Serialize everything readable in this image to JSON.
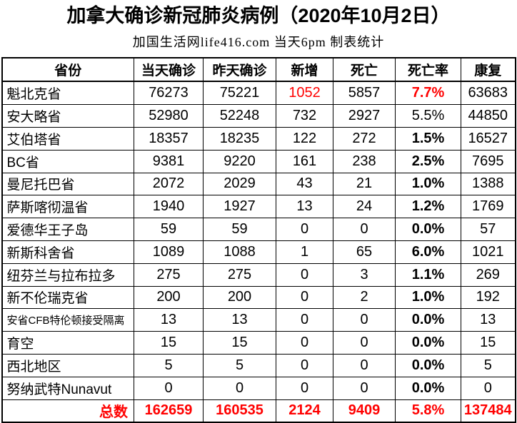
{
  "title": "加拿大确诊新冠肺炎病例（2020年10月2日）",
  "subtitle": "加国生活网life416.com 当天6pm 制表统计",
  "colors": {
    "accent_red": "#ff0000",
    "text": "#000000",
    "border": "#000000",
    "background": "#ffffff"
  },
  "table": {
    "headers": [
      "省份",
      "当天确诊",
      "昨天确诊",
      "新增",
      "死亡",
      "死亡率",
      "康复"
    ],
    "rows": [
      {
        "province": "魁北克省",
        "today": "76273",
        "yesterday": "75221",
        "new": "1052",
        "deaths": "5857",
        "rate": "7.7%",
        "recovered": "63683",
        "new_red": true,
        "rate_red": true,
        "rate_bold": true,
        "small_font": false
      },
      {
        "province": "安大略省",
        "today": "52980",
        "yesterday": "52248",
        "new": "732",
        "deaths": "2927",
        "rate": "5.5%",
        "recovered": "44850",
        "new_red": false,
        "rate_red": false,
        "rate_bold": false,
        "small_font": false
      },
      {
        "province": "艾伯塔省",
        "today": "18357",
        "yesterday": "18235",
        "new": "122",
        "deaths": "272",
        "rate": "1.5%",
        "recovered": "16527",
        "new_red": false,
        "rate_red": false,
        "rate_bold": true,
        "small_font": false
      },
      {
        "province": "BC省",
        "today": "9381",
        "yesterday": "9220",
        "new": "161",
        "deaths": "238",
        "rate": "2.5%",
        "recovered": "7695",
        "new_red": false,
        "rate_red": false,
        "rate_bold": true,
        "small_font": false
      },
      {
        "province": "曼尼托巴省",
        "today": "2072",
        "yesterday": "2029",
        "new": "43",
        "deaths": "21",
        "rate": "1.0%",
        "recovered": "1388",
        "new_red": false,
        "rate_red": false,
        "rate_bold": true,
        "small_font": false
      },
      {
        "province": "萨斯喀彻温省",
        "today": "1940",
        "yesterday": "1927",
        "new": "13",
        "deaths": "24",
        "rate": "1.2%",
        "recovered": "1769",
        "new_red": false,
        "rate_red": false,
        "rate_bold": true,
        "small_font": false
      },
      {
        "province": "爱德华王子岛",
        "today": "59",
        "yesterday": "59",
        "new": "0",
        "deaths": "0",
        "rate": "0.0%",
        "recovered": "57",
        "new_red": false,
        "rate_red": false,
        "rate_bold": true,
        "small_font": false
      },
      {
        "province": "新斯科舍省",
        "today": "1089",
        "yesterday": "1088",
        "new": "1",
        "deaths": "65",
        "rate": "6.0%",
        "recovered": "1021",
        "new_red": false,
        "rate_red": false,
        "rate_bold": true,
        "small_font": false
      },
      {
        "province": "纽芬兰与拉布拉多",
        "today": "275",
        "yesterday": "275",
        "new": "0",
        "deaths": "3",
        "rate": "1.1%",
        "recovered": "269",
        "new_red": false,
        "rate_red": false,
        "rate_bold": true,
        "small_font": false
      },
      {
        "province": "新不伦瑞克省",
        "today": "200",
        "yesterday": "200",
        "new": "0",
        "deaths": "2",
        "rate": "1.0%",
        "recovered": "192",
        "new_red": false,
        "rate_red": false,
        "rate_bold": true,
        "small_font": false
      },
      {
        "province": "安省CFB特伦顿接受隔离",
        "today": "13",
        "yesterday": "13",
        "new": "0",
        "deaths": "0",
        "rate": "0.0%",
        "recovered": "13",
        "new_red": false,
        "rate_red": false,
        "rate_bold": true,
        "small_font": true
      },
      {
        "province": "育空",
        "today": "15",
        "yesterday": "15",
        "new": "0",
        "deaths": "0",
        "rate": "0.0%",
        "recovered": "15",
        "new_red": false,
        "rate_red": false,
        "rate_bold": true,
        "small_font": false
      },
      {
        "province": "西北地区",
        "today": "5",
        "yesterday": "5",
        "new": "0",
        "deaths": "0",
        "rate": "0.0%",
        "recovered": "5",
        "new_red": false,
        "rate_red": false,
        "rate_bold": true,
        "small_font": false
      },
      {
        "province": "努纳武特Nunavut",
        "today": "0",
        "yesterday": "0",
        "new": "0",
        "deaths": "0",
        "rate": "0.0%",
        "recovered": "0",
        "new_red": false,
        "rate_red": false,
        "rate_bold": true,
        "small_font": false
      }
    ],
    "total": {
      "label": "总数",
      "today": "162659",
      "yesterday": "160535",
      "new": "2124",
      "deaths": "9409",
      "rate": "5.8%",
      "recovered": "137484"
    }
  },
  "chart_data": {
    "type": "table",
    "title": "加拿大确诊新冠肺炎病例（2020年10月2日）",
    "subtitle": "加国生活网life416.com 当天6pm 制表统计",
    "columns": [
      "省份",
      "当天确诊",
      "昨天确诊",
      "新增",
      "死亡",
      "死亡率",
      "康复"
    ],
    "rows": [
      [
        "魁北克省",
        76273,
        75221,
        1052,
        5857,
        "7.7%",
        63683
      ],
      [
        "安大略省",
        52980,
        52248,
        732,
        2927,
        "5.5%",
        44850
      ],
      [
        "艾伯塔省",
        18357,
        18235,
        122,
        272,
        "1.5%",
        16527
      ],
      [
        "BC省",
        9381,
        9220,
        161,
        238,
        "2.5%",
        7695
      ],
      [
        "曼尼托巴省",
        2072,
        2029,
        43,
        21,
        "1.0%",
        1388
      ],
      [
        "萨斯喀彻温省",
        1940,
        1927,
        13,
        24,
        "1.2%",
        1769
      ],
      [
        "爱德华王子岛",
        59,
        59,
        0,
        0,
        "0.0%",
        57
      ],
      [
        "新斯科舍省",
        1089,
        1088,
        1,
        65,
        "6.0%",
        1021
      ],
      [
        "纽芬兰与拉布拉多",
        275,
        275,
        0,
        3,
        "1.1%",
        269
      ],
      [
        "新不伦瑞克省",
        200,
        200,
        0,
        2,
        "1.0%",
        192
      ],
      [
        "安省CFB特伦顿接受隔离",
        13,
        13,
        0,
        0,
        "0.0%",
        13
      ],
      [
        "育空",
        15,
        15,
        0,
        0,
        "0.0%",
        15
      ],
      [
        "西北地区",
        5,
        5,
        0,
        0,
        "0.0%",
        5
      ],
      [
        "努纳武特Nunavut",
        0,
        0,
        0,
        0,
        "0.0%",
        0
      ],
      [
        "总数",
        162659,
        160535,
        2124,
        9409,
        "5.8%",
        137484
      ]
    ]
  }
}
